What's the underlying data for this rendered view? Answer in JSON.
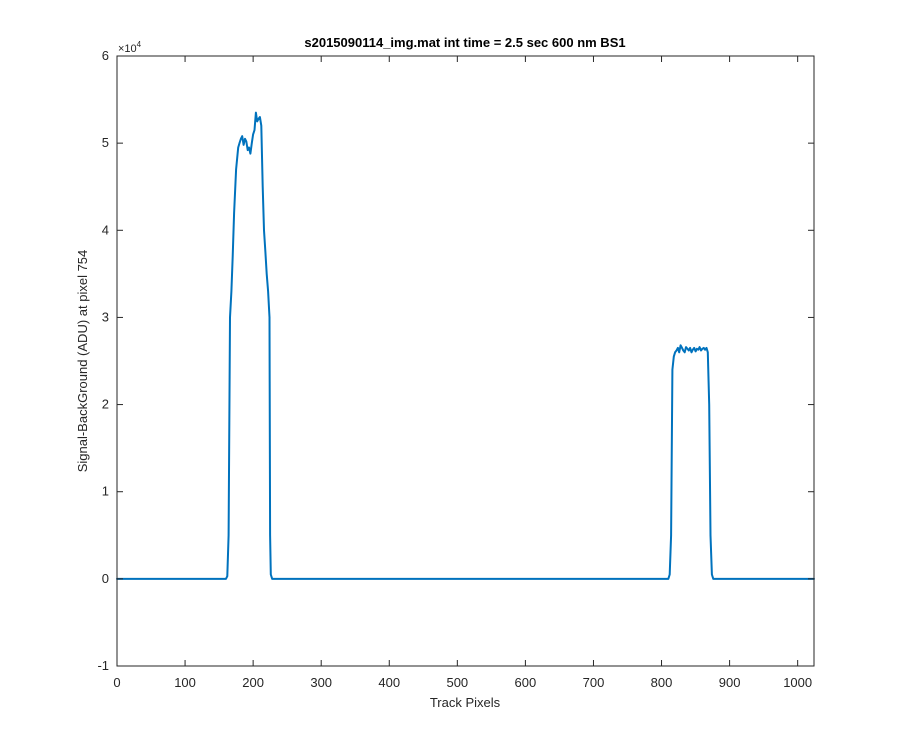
{
  "chart_data": {
    "type": "line",
    "title": "s2015090114_img.mat int time = 2.5 sec  600 nm BS1",
    "xlabel": "Track Pixels",
    "ylabel": "Signal-BackGround (ADU) at pixel 754",
    "xlim": [
      0,
      1024
    ],
    "ylim": [
      -10000,
      60000
    ],
    "xticks": [
      0,
      100,
      200,
      300,
      400,
      500,
      600,
      700,
      800,
      900,
      1000
    ],
    "yticks": [
      -10000,
      0,
      10000,
      20000,
      30000,
      40000,
      50000,
      60000
    ],
    "xtick_labels": [
      "0",
      "100",
      "200",
      "300",
      "400",
      "500",
      "600",
      "700",
      "800",
      "900",
      "1000"
    ],
    "ytick_labels": [
      "-1",
      "0",
      "1",
      "2",
      "3",
      "4",
      "5",
      "6"
    ],
    "y_exponent_base": "×10",
    "y_exponent_power": "4",
    "grid": false,
    "series": [
      {
        "color": "#0072bd",
        "x": [
          0,
          160,
          162,
          164,
          166,
          168,
          170,
          172,
          175,
          178,
          180,
          182,
          184,
          186,
          188,
          190,
          192,
          194,
          196,
          198,
          200,
          202,
          204,
          206,
          208,
          210,
          212,
          214,
          216,
          218,
          220,
          222,
          224,
          225,
          226,
          228,
          230,
          232,
          810,
          812,
          814,
          816,
          818,
          820,
          822,
          824,
          826,
          828,
          830,
          832,
          834,
          836,
          838,
          840,
          842,
          844,
          846,
          848,
          850,
          852,
          854,
          856,
          858,
          860,
          862,
          864,
          866,
          868,
          870,
          872,
          874,
          876,
          878,
          1024
        ],
        "y": [
          0,
          0,
          300,
          5000,
          30000,
          33000,
          37000,
          42000,
          47000,
          49500,
          50000,
          50500,
          50800,
          49800,
          50500,
          50200,
          49200,
          49500,
          48800,
          50000,
          51000,
          51500,
          53500,
          52500,
          52800,
          53000,
          52000,
          45000,
          40000,
          37500,
          35000,
          33000,
          30000,
          5000,
          500,
          0,
          0,
          0,
          0,
          500,
          5000,
          24000,
          25500,
          26000,
          26200,
          26500,
          26000,
          26800,
          26500,
          26200,
          26000,
          26600,
          26400,
          26200,
          26500,
          26000,
          26300,
          26500,
          26100,
          26400,
          26300,
          26600,
          26200,
          26400,
          26500,
          26300,
          26500,
          26000,
          20000,
          5000,
          500,
          0,
          0,
          0
        ]
      }
    ]
  }
}
